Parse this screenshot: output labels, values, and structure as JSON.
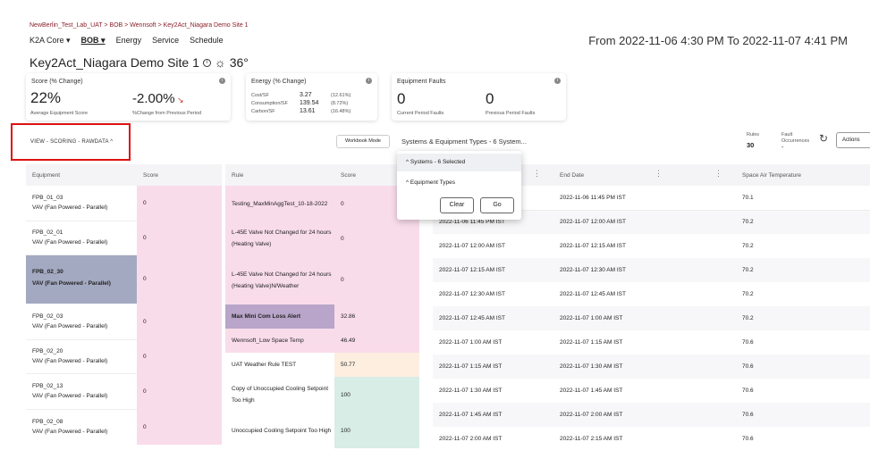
{
  "breadcrumb": "NewBerlin_Test_Lab_UAT > BOB > Wennsoft > Key2Act_Niagara Demo Site 1",
  "nav": {
    "k2a": "K2A Core ▾",
    "bob": "BOB ▾",
    "energy": "Energy",
    "service": "Service",
    "schedule": "Schedule"
  },
  "date_range": "From 2022-11-06 4:30 PM To 2022-11-07 4:41 PM",
  "site": {
    "title": "Key2Act_Niagara Demo Site 1",
    "weather_temp": "36°"
  },
  "cards": {
    "score": {
      "title": "Score (% Change)",
      "value": "22%",
      "value_label": "Average Equipment Score",
      "change": "-2.00%",
      "change_label": "%Change from Previous Period"
    },
    "energy": {
      "title": "Energy (% Change)",
      "rows": [
        {
          "label": "Cost/SF",
          "value": "3.27",
          "change": "(12.61%)"
        },
        {
          "label": "Consumption/SF",
          "value": "139.54",
          "change": "(8.72%)"
        },
        {
          "label": "Carbon/SF",
          "value": "13.61",
          "change": "(16.48%)"
        }
      ]
    },
    "faults": {
      "title": "Equipment Faults",
      "current": "0",
      "current_label": "Current Period Faults",
      "previous": "0",
      "previous_label": "Previous Period Faults"
    }
  },
  "toolbar": {
    "view_label": "VIEW - SCORING - RAWDATA ^",
    "workbook_mode": "Workbook Mode",
    "systems_select": "Systems & Equipment Types - 6 System...",
    "rules_label": "Rules",
    "rules_value": "30",
    "fault_occurrences_label": "Fault Occurrences",
    "fault_occurrences_value": "-",
    "actions_label": "Actions"
  },
  "dropdown": {
    "systems_item": "^  Systems - 6 Selected",
    "equipment_types_item": "^  Equipment Types",
    "clear": "Clear",
    "go": "Go"
  },
  "equipment_table": {
    "headers": [
      "Equipment",
      "Score"
    ],
    "rows": [
      {
        "name": "FPB_01_03",
        "type": "VAV (Fan Powered - Parallel)",
        "score": "0"
      },
      {
        "name": "FPB_02_01",
        "type": "VAV (Fan Powered - Parallel)",
        "score": "0"
      },
      {
        "name": "FPB_02_30",
        "type": "VAV (Fan Powered - Parallel)",
        "score": "0"
      },
      {
        "name": "FPB_02_03",
        "type": "VAV (Fan Powered - Parallel)",
        "score": "0"
      },
      {
        "name": "FPB_02_20",
        "type": "VAV (Fan Powered - Parallel)",
        "score": "0"
      },
      {
        "name": "FPB_02_13",
        "type": "VAV (Fan Powered - Parallel)",
        "score": "0"
      },
      {
        "name": "FPB_02_08",
        "type": "VAV (Fan Powered - Parallel)",
        "score": "0"
      }
    ]
  },
  "rule_table": {
    "headers": [
      "Rule",
      "Score"
    ],
    "rows": [
      {
        "rule": "Testing_MaxMinAggTest_10-18-2022",
        "score": "0"
      },
      {
        "rule": "L-45E Valve Not Changed for 24 hours (Heating Valve)",
        "score": "0"
      },
      {
        "rule": "L-45E Valve Not Changed for 24 hours (Heating Valve)N/Weather",
        "score": "0"
      },
      {
        "rule": "Max Mini Com Loss Alert",
        "score": "32.86"
      },
      {
        "rule": "Wennsoft_Low Space Temp",
        "score": "46.49"
      },
      {
        "rule": "UAT Weather Rule TEST",
        "score": "50.77"
      },
      {
        "rule": "Copy of Unoccupied Cooling Setpoint Too High",
        "score": "100"
      },
      {
        "rule": "Unoccupied Cooling Setpoint Too High",
        "score": "100"
      }
    ]
  },
  "raw_table": {
    "headers": [
      "Start Date",
      "End Date",
      "Space Air Temperature"
    ],
    "rows": [
      {
        "start": "2022-11-06 11:30 PM IST",
        "end": "2022-11-06 11:45 PM IST",
        "temp": "70.1"
      },
      {
        "start": "2022-11-06 11:45 PM IST",
        "end": "2022-11-07 12:00 AM IST",
        "temp": "70.2"
      },
      {
        "start": "2022-11-07 12:00 AM IST",
        "end": "2022-11-07 12:15 AM IST",
        "temp": "70.2"
      },
      {
        "start": "2022-11-07 12:15 AM IST",
        "end": "2022-11-07 12:30 AM IST",
        "temp": "70.2"
      },
      {
        "start": "2022-11-07 12:30 AM IST",
        "end": "2022-11-07 12:45 AM IST",
        "temp": "70.2"
      },
      {
        "start": "2022-11-07 12:45 AM IST",
        "end": "2022-11-07 1:00 AM IST",
        "temp": "70.2"
      },
      {
        "start": "2022-11-07 1:00 AM IST",
        "end": "2022-11-07 1:15 AM IST",
        "temp": "70.6"
      },
      {
        "start": "2022-11-07 1:15 AM IST",
        "end": "2022-11-07 1:30 AM IST",
        "temp": "70.6"
      },
      {
        "start": "2022-11-07 1:30 AM IST",
        "end": "2022-11-07 1:45 AM IST",
        "temp": "70.6"
      },
      {
        "start": "2022-11-07 1:45 AM IST",
        "end": "2022-11-07 2:00 AM IST",
        "temp": "70.6"
      },
      {
        "start": "2022-11-07 2:00 AM IST",
        "end": "2022-11-07 2:15 AM IST",
        "temp": "70.6"
      }
    ]
  },
  "colors": {
    "pink": "#f9dcea",
    "selected": "#a3a9c0",
    "max_mini": "#b8a5c9",
    "peach": "#fdeee0",
    "green": "#d7ede6",
    "red_outline": "#dd1111",
    "breadcrumb": "#8a1f2a"
  }
}
